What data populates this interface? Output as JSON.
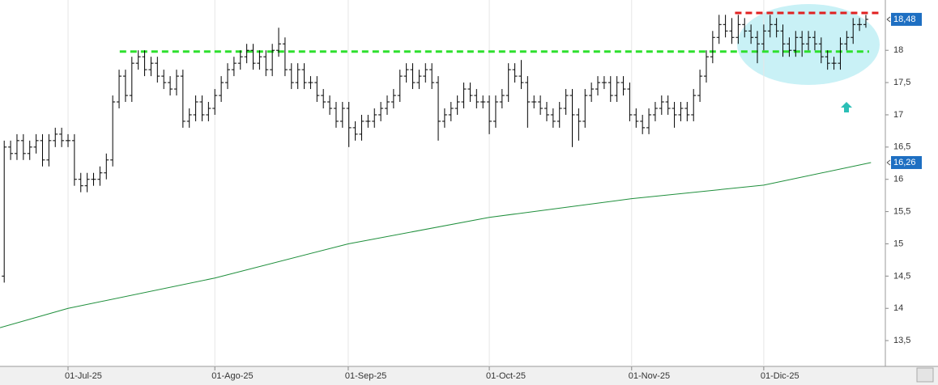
{
  "chart_data": {
    "type": "ohlc",
    "color": "#000000",
    "open": [
      14.5,
      16.5,
      16.4,
      16.6,
      16.4,
      16.5,
      16.6,
      16.3,
      16.6,
      16.7,
      16.6,
      16.6,
      16.0,
      15.9,
      16.0,
      16.0,
      16.1,
      16.3,
      17.2,
      17.6,
      17.3,
      17.8,
      17.9,
      17.7,
      17.8,
      17.6,
      17.5,
      17.4,
      17.6,
      16.9,
      17.0,
      17.2,
      17.0,
      17.1,
      17.3,
      17.5,
      17.7,
      17.8,
      17.9,
      18.0,
      17.8,
      17.9,
      17.7,
      18.0,
      18.1,
      17.7,
      17.5,
      17.7,
      17.5,
      17.5,
      17.3,
      17.2,
      17.1,
      16.9,
      17.1,
      16.8,
      16.7,
      16.9,
      16.9,
      17.0,
      17.1,
      17.2,
      17.3,
      17.6,
      17.7,
      17.5,
      17.6,
      17.7,
      17.5,
      16.9,
      17.0,
      17.1,
      17.2,
      17.4,
      17.3,
      17.2,
      17.2,
      16.9,
      17.2,
      17.3,
      17.7,
      17.6,
      17.5,
      17.2,
      17.2,
      17.1,
      17.0,
      16.9,
      17.1,
      17.3,
      17.0,
      16.9,
      17.3,
      17.4,
      17.5,
      17.5,
      17.3,
      17.5,
      17.4,
      17.0,
      16.9,
      16.8,
      17.0,
      17.1,
      17.2,
      17.1,
      17.0,
      17.1,
      17.0,
      17.3,
      17.6,
      17.9,
      18.2,
      18.4,
      18.3,
      18.2,
      18.4,
      18.3,
      18.2,
      18.1,
      18.3,
      18.4,
      18.3,
      18.1,
      18.0,
      18.2,
      18.1,
      18.2,
      18.1,
      17.9,
      17.8,
      17.8,
      18.1,
      18.2,
      18.4,
      18.4
    ],
    "high": [
      16.6,
      16.6,
      16.7,
      16.7,
      16.6,
      16.7,
      16.7,
      16.7,
      16.8,
      16.8,
      16.7,
      16.7,
      16.1,
      16.1,
      16.1,
      16.2,
      16.4,
      17.3,
      17.7,
      17.7,
      17.9,
      18.0,
      18.0,
      17.9,
      17.9,
      17.7,
      17.6,
      17.7,
      17.7,
      17.1,
      17.3,
      17.3,
      17.2,
      17.4,
      17.6,
      17.8,
      17.9,
      18.0,
      18.1,
      18.1,
      18.0,
      18.0,
      18.1,
      18.35,
      18.2,
      17.8,
      17.8,
      17.8,
      17.6,
      17.6,
      17.4,
      17.3,
      17.2,
      17.2,
      17.2,
      16.9,
      17.0,
      17.0,
      17.1,
      17.2,
      17.3,
      17.4,
      17.7,
      17.8,
      17.8,
      17.7,
      17.8,
      17.8,
      17.6,
      17.1,
      17.2,
      17.3,
      17.5,
      17.5,
      17.4,
      17.3,
      17.3,
      17.3,
      17.4,
      17.8,
      17.8,
      17.85,
      17.6,
      17.3,
      17.3,
      17.2,
      17.1,
      17.2,
      17.4,
      17.4,
      17.1,
      17.4,
      17.5,
      17.6,
      17.6,
      17.6,
      17.6,
      17.6,
      17.5,
      17.1,
      17.0,
      17.1,
      17.2,
      17.3,
      17.3,
      17.2,
      17.2,
      17.2,
      17.4,
      17.7,
      18.0,
      18.3,
      18.55,
      18.55,
      18.5,
      18.55,
      18.5,
      18.4,
      18.3,
      18.4,
      18.55,
      18.5,
      18.4,
      18.2,
      18.3,
      18.3,
      18.3,
      18.3,
      18.2,
      18.0,
      17.9,
      18.2,
      18.3,
      18.5,
      18.5,
      18.55
    ],
    "low": [
      14.4,
      16.3,
      16.3,
      16.3,
      16.3,
      16.4,
      16.2,
      16.2,
      16.5,
      16.5,
      16.5,
      15.9,
      15.8,
      15.8,
      15.9,
      15.9,
      16.0,
      16.2,
      17.1,
      17.2,
      17.2,
      17.7,
      17.6,
      17.6,
      17.5,
      17.4,
      17.3,
      17.3,
      16.8,
      16.8,
      16.9,
      16.9,
      16.9,
      17.0,
      17.2,
      17.4,
      17.6,
      17.7,
      17.8,
      17.7,
      17.7,
      17.6,
      17.6,
      17.9,
      17.6,
      17.4,
      17.4,
      17.4,
      17.4,
      17.2,
      17.1,
      17.0,
      16.8,
      16.8,
      16.5,
      16.6,
      16.6,
      16.8,
      16.8,
      16.9,
      17.0,
      17.1,
      17.2,
      17.5,
      17.4,
      17.4,
      17.5,
      17.4,
      16.6,
      16.8,
      16.9,
      17.0,
      17.1,
      17.2,
      17.1,
      17.1,
      16.7,
      16.8,
      17.1,
      17.2,
      17.5,
      17.4,
      16.8,
      17.1,
      17.0,
      16.9,
      16.8,
      16.8,
      17.0,
      16.5,
      16.6,
      16.8,
      17.2,
      17.3,
      17.4,
      17.2,
      17.2,
      17.3,
      16.9,
      16.8,
      16.7,
      16.7,
      16.9,
      17.0,
      17.0,
      16.8,
      16.9,
      16.9,
      16.9,
      17.2,
      17.5,
      17.8,
      18.1,
      18.2,
      18.1,
      18.1,
      18.2,
      18.1,
      17.8,
      18.0,
      18.2,
      18.2,
      17.9,
      17.9,
      17.9,
      17.9,
      18.0,
      18.0,
      17.8,
      17.7,
      17.7,
      17.7,
      18.0,
      18.1,
      18.3,
      18.35
    ],
    "close": [
      16.5,
      16.4,
      16.6,
      16.4,
      16.5,
      16.6,
      16.3,
      16.6,
      16.7,
      16.6,
      16.6,
      16.0,
      15.9,
      16.0,
      16.0,
      16.1,
      16.3,
      17.2,
      17.6,
      17.3,
      17.8,
      17.9,
      17.7,
      17.8,
      17.6,
      17.5,
      17.4,
      17.6,
      16.9,
      17.0,
      17.2,
      17.0,
      17.1,
      17.3,
      17.5,
      17.7,
      17.8,
      17.9,
      18.0,
      17.8,
      17.9,
      17.7,
      18.0,
      18.1,
      17.7,
      17.5,
      17.7,
      17.5,
      17.5,
      17.3,
      17.2,
      17.1,
      16.9,
      17.1,
      16.8,
      16.7,
      16.9,
      16.9,
      17.0,
      17.1,
      17.2,
      17.3,
      17.6,
      17.7,
      17.5,
      17.6,
      17.7,
      17.5,
      16.9,
      17.0,
      17.1,
      17.2,
      17.4,
      17.3,
      17.2,
      17.2,
      16.9,
      17.2,
      17.3,
      17.7,
      17.6,
      17.5,
      17.2,
      17.2,
      17.1,
      17.0,
      16.9,
      17.1,
      17.3,
      17.0,
      16.9,
      17.3,
      17.4,
      17.5,
      17.5,
      17.3,
      17.5,
      17.4,
      17.0,
      16.9,
      16.8,
      17.0,
      17.1,
      17.2,
      17.1,
      17.0,
      17.1,
      17.0,
      17.3,
      17.6,
      17.9,
      18.2,
      18.4,
      18.3,
      18.2,
      18.4,
      18.3,
      18.2,
      18.1,
      18.3,
      18.4,
      18.3,
      18.1,
      18.0,
      18.2,
      18.1,
      18.2,
      18.1,
      17.9,
      17.8,
      17.8,
      18.1,
      18.2,
      18.4,
      18.4,
      18.48
    ],
    "moving_average": {
      "type": "line",
      "color": "#1f8f3c",
      "x": [
        -0.66,
        10,
        33,
        53.9,
        76,
        98.3,
        119,
        135.8
      ],
      "values": [
        13.7,
        14.0,
        14.47,
        15.0,
        15.41,
        15.7,
        15.91,
        16.26
      ]
    },
    "levels": [
      {
        "value": 17.98,
        "color": "#2ee02e",
        "x": [
          18.1,
          135.5
        ]
      },
      {
        "value": 18.58,
        "color": "#e02020",
        "x": [
          114.5,
          137.2
        ]
      }
    ],
    "price_labels": [
      {
        "value": 18.48,
        "label": "18,48"
      },
      {
        "value": 16.26,
        "label": "16,26"
      }
    ],
    "xlim": [
      -0.66,
      138.05
    ],
    "xticks": [
      {
        "value": 10,
        "label": "01-Jul-25"
      },
      {
        "value": 33,
        "label": "01-Ago-25"
      },
      {
        "value": 53.9,
        "label": "01-Sep-25"
      },
      {
        "value": 76,
        "label": "01-Oct-25"
      },
      {
        "value": 98.3,
        "label": "01-Nov-25"
      },
      {
        "value": 119,
        "label": "01-Dic-25"
      }
    ],
    "ylim": [
      13.1,
      18.78
    ],
    "yticks": [
      {
        "value": 13.5,
        "label": "13,5"
      },
      14,
      {
        "value": 14.5,
        "label": "14,5"
      },
      15,
      {
        "value": 15.5,
        "label": "15,5"
      },
      16,
      {
        "value": 16.5,
        "label": "16,5"
      },
      17,
      {
        "value": 17.5,
        "label": "17,5"
      },
      18
    ],
    "grid": true
  }
}
